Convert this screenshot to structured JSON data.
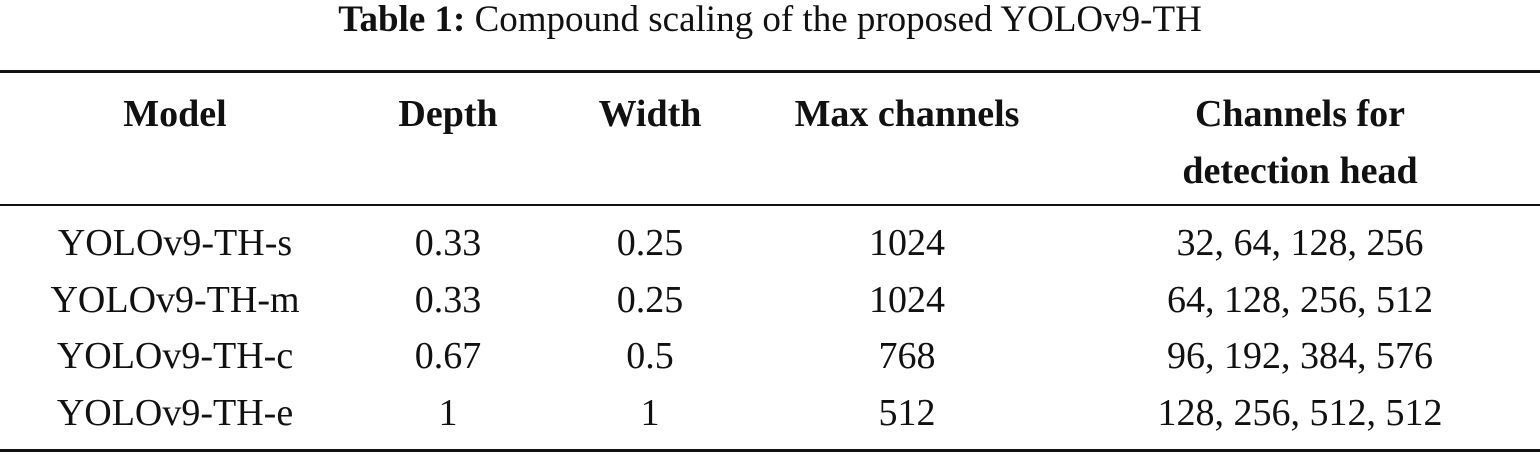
{
  "table": {
    "caption": {
      "label": "Table 1:",
      "text": "Compound scaling of the proposed YOLOv9-TH"
    },
    "headers": [
      "Model",
      "Depth",
      "Width",
      "Max channels",
      "Channels for detection head"
    ],
    "rows": [
      [
        "YOLOv9-TH-s",
        "0.33",
        "0.25",
        "1024",
        "32, 64, 128, 256"
      ],
      [
        "YOLOv9-TH-m",
        "0.33",
        "0.25",
        "1024",
        "64, 128, 256, 512"
      ],
      [
        "YOLOv9-TH-c",
        "0.67",
        "0.5",
        "768",
        "96, 192, 384, 576"
      ],
      [
        "YOLOv9-TH-e",
        "1",
        "1",
        "512",
        "128, 256, 512, 512"
      ]
    ]
  }
}
